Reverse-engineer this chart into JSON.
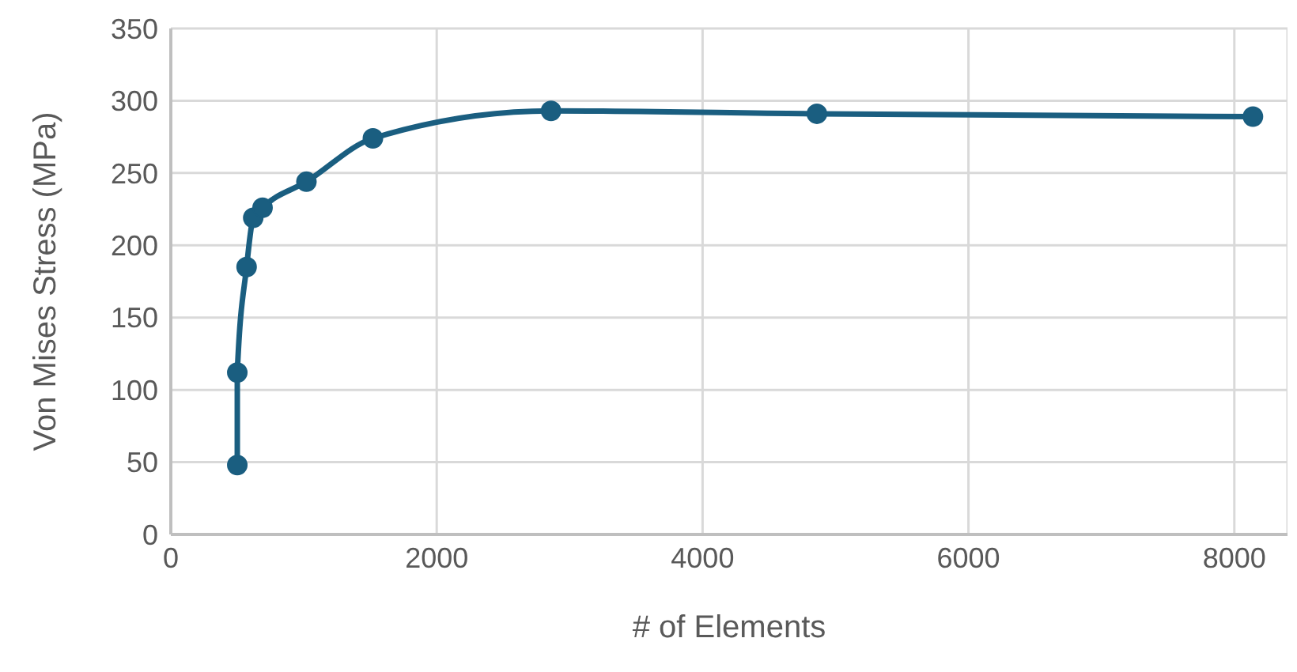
{
  "chart_data": {
    "type": "line",
    "xlabel": "# of Elements",
    "ylabel": "Von Mises Stress (MPa)",
    "x": [
      500,
      500,
      570,
      620,
      690,
      1020,
      1520,
      2860,
      4860,
      8140
    ],
    "series": [
      {
        "color": "#1a5e80",
        "values": [
          48,
          112,
          185,
          219,
          226,
          244,
          274,
          293,
          291,
          289
        ]
      }
    ],
    "xlim": [
      0,
      8400
    ],
    "xticks": [
      0,
      2000,
      4000,
      6000,
      8000
    ],
    "ylim": [
      0,
      350
    ],
    "yticks": [
      0,
      50,
      100,
      150,
      200,
      250,
      300,
      350
    ],
    "grid": true,
    "marker": "circle",
    "line_style": "solid"
  }
}
